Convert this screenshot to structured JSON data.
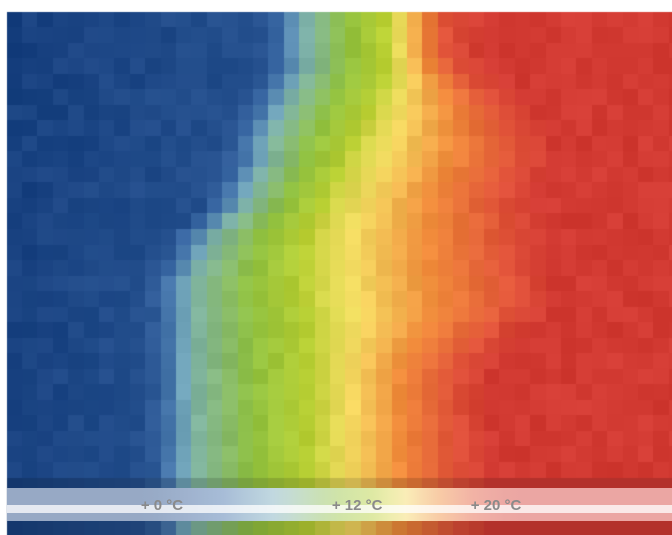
{
  "chart_data": {
    "type": "heatmap",
    "title": "",
    "xlabel": "",
    "ylabel": "",
    "unit": "°C",
    "grid": false,
    "legend": "bottom",
    "color_scale": [
      {
        "value": 0,
        "color": "#17407f"
      },
      {
        "value": 4,
        "color": "#3b6aa6"
      },
      {
        "value": 7,
        "color": "#79aebd"
      },
      {
        "value": 10,
        "color": "#8fc040"
      },
      {
        "value": 12.5,
        "color": "#b9d033"
      },
      {
        "value": 14,
        "color": "#f4dc62"
      },
      {
        "value": 16,
        "color": "#f08a3a"
      },
      {
        "value": 18,
        "color": "#e05238"
      },
      {
        "value": 20,
        "color": "#d23a32"
      }
    ],
    "legend_ticks": [
      {
        "value": 0,
        "label": "+ 0 °C"
      },
      {
        "value": 12,
        "label": "+ 12 °C"
      },
      {
        "value": 20,
        "label": "+ 20 °C"
      }
    ],
    "rows": [
      {
        "cold_edge": 19.5,
        "green_edge": 25.0,
        "hot_edge": 28.5
      },
      {
        "cold_edge": 19.5,
        "green_edge": 25.0,
        "hot_edge": 28.5
      },
      {
        "cold_edge": 19.5,
        "green_edge": 25.0,
        "hot_edge": 28.5
      },
      {
        "cold_edge": 19.5,
        "green_edge": 25.0,
        "hot_edge": 29.0
      },
      {
        "cold_edge": 19.0,
        "green_edge": 25.0,
        "hot_edge": 30.0
      },
      {
        "cold_edge": 18.5,
        "green_edge": 24.5,
        "hot_edge": 31.0
      },
      {
        "cold_edge": 18.0,
        "green_edge": 24.0,
        "hot_edge": 32.0
      },
      {
        "cold_edge": 17.5,
        "green_edge": 23.5,
        "hot_edge": 32.5
      },
      {
        "cold_edge": 17.0,
        "green_edge": 23.0,
        "hot_edge": 33.0
      },
      {
        "cold_edge": 17.0,
        "green_edge": 22.5,
        "hot_edge": 33.0
      },
      {
        "cold_edge": 16.5,
        "green_edge": 22.0,
        "hot_edge": 32.5
      },
      {
        "cold_edge": 16.0,
        "green_edge": 21.5,
        "hot_edge": 32.0
      },
      {
        "cold_edge": 15.5,
        "green_edge": 21.0,
        "hot_edge": 32.0
      },
      {
        "cold_edge": 14.5,
        "green_edge": 20.5,
        "hot_edge": 32.5
      },
      {
        "cold_edge": 13.5,
        "green_edge": 20.0,
        "hot_edge": 32.5
      },
      {
        "cold_edge": 13.0,
        "green_edge": 20.0,
        "hot_edge": 32.5
      },
      {
        "cold_edge": 12.5,
        "green_edge": 20.0,
        "hot_edge": 32.5
      },
      {
        "cold_edge": 12.0,
        "green_edge": 20.0,
        "hot_edge": 33.0
      },
      {
        "cold_edge": 12.0,
        "green_edge": 20.0,
        "hot_edge": 33.0
      },
      {
        "cold_edge": 12.0,
        "green_edge": 20.5,
        "hot_edge": 32.5
      },
      {
        "cold_edge": 12.0,
        "green_edge": 20.5,
        "hot_edge": 31.5
      },
      {
        "cold_edge": 12.0,
        "green_edge": 20.5,
        "hot_edge": 30.5
      },
      {
        "cold_edge": 12.0,
        "green_edge": 20.5,
        "hot_edge": 29.5
      },
      {
        "cold_edge": 12.0,
        "green_edge": 20.5,
        "hot_edge": 29.0
      },
      {
        "cold_edge": 12.0,
        "green_edge": 20.5,
        "hot_edge": 29.0
      },
      {
        "cold_edge": 12.0,
        "green_edge": 20.5,
        "hot_edge": 29.0
      },
      {
        "cold_edge": 12.0,
        "green_edge": 20.5,
        "hot_edge": 29.0
      },
      {
        "cold_edge": 12.0,
        "green_edge": 20.5,
        "hot_edge": 29.0
      },
      {
        "cold_edge": 12.0,
        "green_edge": 20.5,
        "hot_edge": 29.0
      },
      {
        "cold_edge": 12.0,
        "green_edge": 20.5,
        "hot_edge": 29.0
      }
    ]
  }
}
